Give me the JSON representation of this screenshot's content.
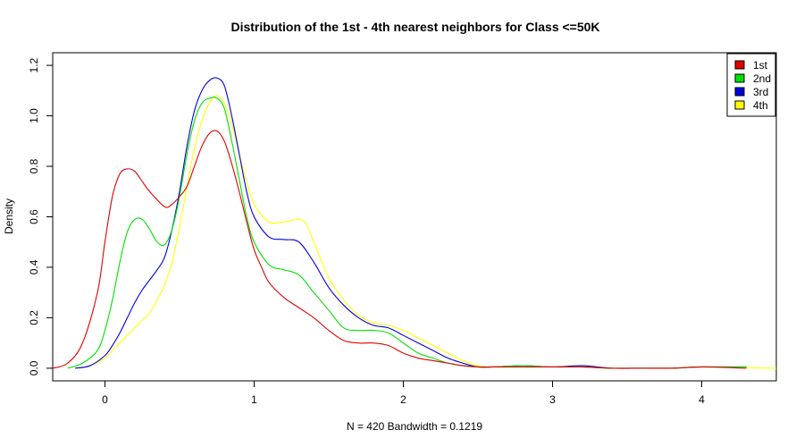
{
  "chart_data": {
    "type": "line",
    "title": "Distribution of the 1st - 4th nearest neighbors for Class <=50K",
    "xlabel": "N = 420   Bandwidth = 0.1219",
    "ylabel": "Density",
    "xlim": [
      -0.35,
      4.5
    ],
    "ylim": [
      -0.05,
      1.25
    ],
    "x_ticks": [
      "0",
      "1",
      "2",
      "3",
      "4"
    ],
    "y_ticks": [
      "0.0",
      "0.2",
      "0.4",
      "0.6",
      "0.8",
      "1.0",
      "1.2"
    ],
    "legend_position": "top-right",
    "series": [
      {
        "name": "1st",
        "color": "#DF0000",
        "x": [
          -0.35,
          -0.25,
          -0.15,
          -0.05,
          0.0,
          0.05,
          0.1,
          0.15,
          0.2,
          0.25,
          0.3,
          0.4,
          0.45,
          0.5,
          0.55,
          0.6,
          0.65,
          0.7,
          0.75,
          0.8,
          0.85,
          0.9,
          0.95,
          1.0,
          1.05,
          1.1,
          1.2,
          1.3,
          1.4,
          1.5,
          1.6,
          1.7,
          1.8,
          1.9,
          2.0,
          2.1,
          2.2,
          2.3,
          2.4,
          2.5,
          2.6,
          2.8,
          3.0,
          3.2,
          3.4,
          3.6,
          3.8,
          4.0,
          4.3
        ],
        "y": [
          0.0,
          0.02,
          0.1,
          0.3,
          0.5,
          0.68,
          0.77,
          0.79,
          0.78,
          0.74,
          0.7,
          0.64,
          0.65,
          0.68,
          0.72,
          0.8,
          0.88,
          0.93,
          0.94,
          0.9,
          0.81,
          0.7,
          0.58,
          0.47,
          0.4,
          0.34,
          0.28,
          0.24,
          0.2,
          0.15,
          0.11,
          0.1,
          0.1,
          0.09,
          0.06,
          0.04,
          0.03,
          0.02,
          0.01,
          0.005,
          0.005,
          0.005,
          0.005,
          0.005,
          0.0,
          0.0,
          0.0,
          0.005,
          0.0
        ]
      },
      {
        "name": "2nd",
        "color": "#00E000",
        "x": [
          -0.25,
          -0.15,
          -0.05,
          0.0,
          0.05,
          0.1,
          0.15,
          0.2,
          0.25,
          0.3,
          0.35,
          0.4,
          0.45,
          0.5,
          0.55,
          0.6,
          0.65,
          0.7,
          0.75,
          0.8,
          0.85,
          0.9,
          0.95,
          1.0,
          1.1,
          1.2,
          1.3,
          1.4,
          1.5,
          1.6,
          1.7,
          1.8,
          1.9,
          2.0,
          2.1,
          2.2,
          2.3,
          2.4,
          2.5,
          2.6,
          2.8,
          3.0,
          3.2,
          3.4,
          3.6,
          3.8,
          4.0,
          4.3
        ],
        "y": [
          0.0,
          0.02,
          0.07,
          0.15,
          0.27,
          0.42,
          0.54,
          0.59,
          0.59,
          0.55,
          0.5,
          0.49,
          0.55,
          0.68,
          0.85,
          0.98,
          1.05,
          1.07,
          1.07,
          1.03,
          0.9,
          0.75,
          0.6,
          0.5,
          0.41,
          0.39,
          0.37,
          0.3,
          0.23,
          0.16,
          0.15,
          0.15,
          0.14,
          0.1,
          0.06,
          0.04,
          0.02,
          0.01,
          0.005,
          0.005,
          0.01,
          0.005,
          0.005,
          0.0,
          0.0,
          0.0,
          0.005,
          0.005
        ]
      },
      {
        "name": "3rd",
        "color": "#0000E0",
        "x": [
          -0.2,
          -0.1,
          0.0,
          0.05,
          0.1,
          0.15,
          0.2,
          0.25,
          0.3,
          0.35,
          0.4,
          0.45,
          0.5,
          0.55,
          0.6,
          0.65,
          0.7,
          0.75,
          0.8,
          0.85,
          0.9,
          0.95,
          1.0,
          1.1,
          1.2,
          1.3,
          1.4,
          1.5,
          1.6,
          1.7,
          1.8,
          1.9,
          2.0,
          2.1,
          2.2,
          2.3,
          2.4,
          2.5,
          2.6,
          2.8,
          3.0,
          3.2,
          3.4,
          3.6,
          3.8,
          4.0,
          4.3
        ],
        "y": [
          0.0,
          0.01,
          0.05,
          0.09,
          0.14,
          0.2,
          0.26,
          0.31,
          0.35,
          0.39,
          0.44,
          0.55,
          0.7,
          0.88,
          1.02,
          1.1,
          1.14,
          1.15,
          1.12,
          1.0,
          0.85,
          0.7,
          0.6,
          0.52,
          0.51,
          0.5,
          0.42,
          0.32,
          0.25,
          0.2,
          0.17,
          0.16,
          0.13,
          0.1,
          0.07,
          0.04,
          0.02,
          0.005,
          0.005,
          0.01,
          0.005,
          0.01,
          0.0,
          0.0,
          0.0,
          0.005,
          0.005
        ]
      },
      {
        "name": "4th",
        "color": "#FFFF00",
        "x": [
          -0.2,
          -0.1,
          0.0,
          0.05,
          0.1,
          0.15,
          0.2,
          0.25,
          0.3,
          0.35,
          0.4,
          0.45,
          0.5,
          0.55,
          0.6,
          0.65,
          0.7,
          0.75,
          0.8,
          0.85,
          0.9,
          0.95,
          1.0,
          1.1,
          1.2,
          1.3,
          1.35,
          1.4,
          1.5,
          1.6,
          1.7,
          1.8,
          1.9,
          2.0,
          2.1,
          2.2,
          2.3,
          2.4,
          2.5,
          2.6,
          2.8,
          3.0,
          3.2,
          3.4,
          3.6,
          3.8,
          4.0,
          4.5
        ],
        "y": [
          0.0,
          0.01,
          0.04,
          0.07,
          0.1,
          0.13,
          0.16,
          0.19,
          0.22,
          0.27,
          0.33,
          0.42,
          0.56,
          0.72,
          0.87,
          0.98,
          1.05,
          1.08,
          1.05,
          0.97,
          0.85,
          0.74,
          0.65,
          0.58,
          0.58,
          0.59,
          0.57,
          0.5,
          0.36,
          0.27,
          0.21,
          0.18,
          0.17,
          0.15,
          0.12,
          0.09,
          0.06,
          0.03,
          0.01,
          0.005,
          0.005,
          0.005,
          0.005,
          0.0,
          0.0,
          0.0,
          0.005,
          0.0
        ]
      }
    ]
  }
}
